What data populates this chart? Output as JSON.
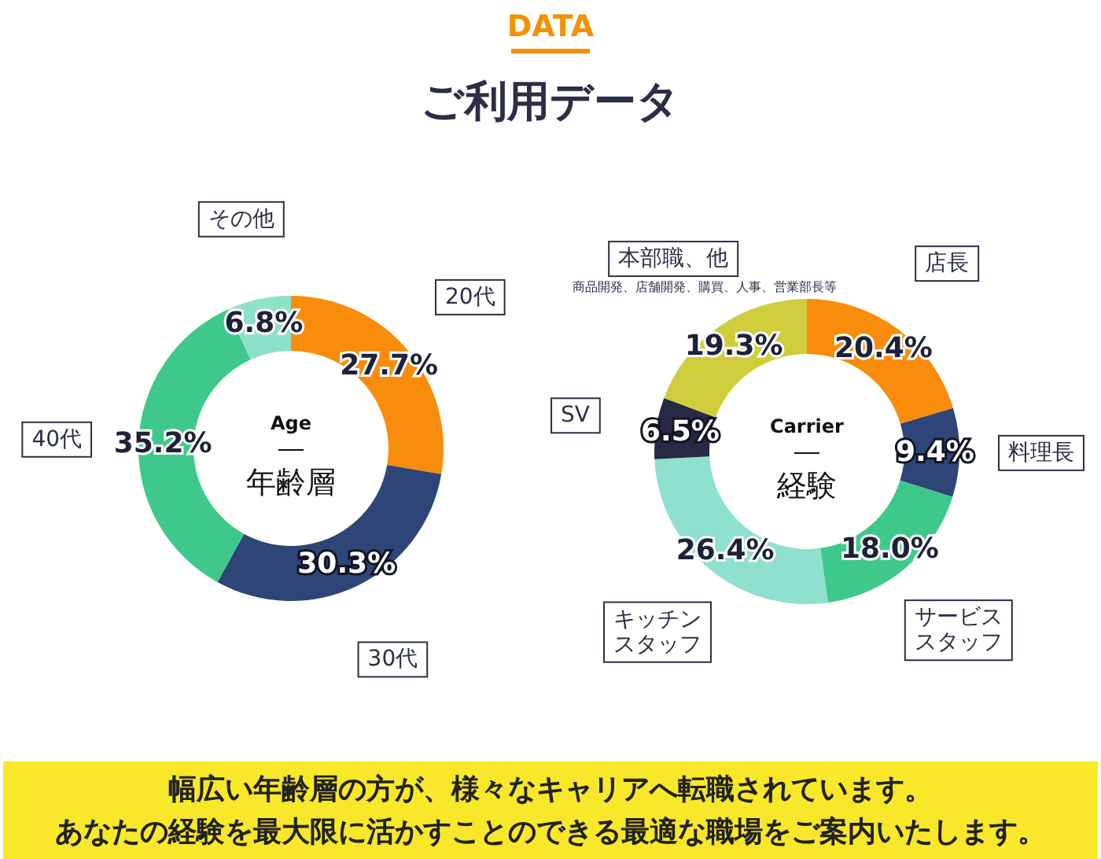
{
  "chart_data": [
    {
      "type": "other",
      "title": "DATA",
      "subtitle": "ご利用データ"
    },
    {
      "type": "donut",
      "title": "Age",
      "subtitle": "年齢層",
      "categories": [
        "20代",
        "30代",
        "40代",
        "その他"
      ],
      "values": [
        27.7,
        30.3,
        35.2,
        6.8
      ],
      "value_labels": [
        "27.7%",
        "30.3%",
        "35.2%",
        "6.8%"
      ],
      "colors": [
        "#f98c0a",
        "#2d4577",
        "#3ec98a",
        "#8fe0c8"
      ]
    },
    {
      "type": "donut",
      "title": "Carrier",
      "subtitle": "経験",
      "categories": [
        "店長",
        "料理長",
        "サービススタッフ",
        "キッチンスタッフ",
        "SV",
        "本部職、他"
      ],
      "values": [
        20.4,
        9.4,
        18.0,
        26.4,
        6.5,
        19.3
      ],
      "value_labels": [
        "20.4%",
        "9.4%",
        "18.0%",
        "26.4%",
        "6.5%",
        "19.3%"
      ],
      "colors": [
        "#f98c0a",
        "#2d4577",
        "#3ec98a",
        "#8fe0cc",
        "#262a45",
        "#d0cd3c"
      ],
      "annotations": [
        "商品開発、店舗開発、購買、人事、営業部長等"
      ]
    },
    {
      "type": "other",
      "annotations": [
        "幅広い年齢層の方が、様々なキャリアへ転職されています。",
        "あなたの経験を最大限に活かすことのできる最適な職場をご案内いたします。"
      ]
    }
  ]
}
